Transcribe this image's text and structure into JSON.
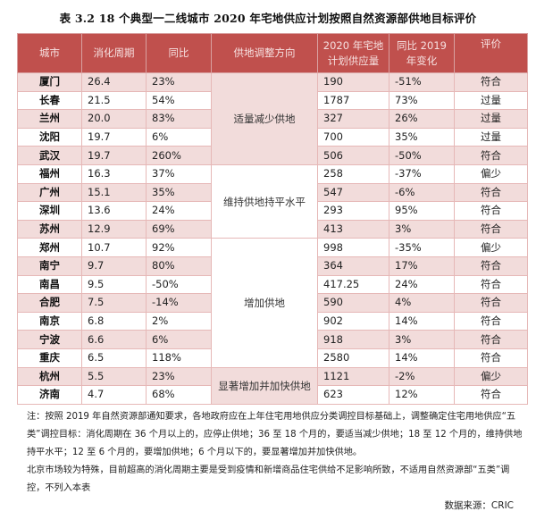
{
  "caption": "表 3.2   18 个典型一二线城市 2020 年宅地供应计划按照自然资源部供地目标评价",
  "table": {
    "headers": {
      "city": "城市",
      "cycle": "消化周期",
      "yoy": "同比",
      "direction": "供地调整方向",
      "supply_line1": "2020 年宅地",
      "supply_line2": "计划供应量",
      "change_line1": "同比 2019",
      "change_line2": "年变化",
      "eval": "评价"
    },
    "rows": [
      {
        "city": "厦门",
        "cycle": "26.4",
        "yoy": "23%",
        "supply": "190",
        "change": "-51%",
        "eval": "符合"
      },
      {
        "city": "长春",
        "cycle": "21.5",
        "yoy": "54%",
        "supply": "1787",
        "change": "73%",
        "eval": "过量"
      },
      {
        "city": "兰州",
        "cycle": "20.0",
        "yoy": "83%",
        "supply": "327",
        "change": "26%",
        "eval": "过量"
      },
      {
        "city": "沈阳",
        "cycle": "19.7",
        "yoy": "6%",
        "supply": "700",
        "change": "35%",
        "eval": "过量"
      },
      {
        "city": "武汉",
        "cycle": "19.7",
        "yoy": "260%",
        "supply": "506",
        "change": "-50%",
        "eval": "符合"
      },
      {
        "city": "福州",
        "cycle": "16.3",
        "yoy": "37%",
        "supply": "258",
        "change": "-37%",
        "eval": "偏少"
      },
      {
        "city": "广州",
        "cycle": "15.1",
        "yoy": "35%",
        "supply": "547",
        "change": "-6%",
        "eval": "符合"
      },
      {
        "city": "深圳",
        "cycle": "13.6",
        "yoy": "24%",
        "supply": "293",
        "change": "95%",
        "eval": "符合"
      },
      {
        "city": "苏州",
        "cycle": "12.9",
        "yoy": "69%",
        "supply": "413",
        "change": "3%",
        "eval": "符合"
      },
      {
        "city": "郑州",
        "cycle": "10.7",
        "yoy": "92%",
        "supply": "998",
        "change": "-35%",
        "eval": "偏少"
      },
      {
        "city": "南宁",
        "cycle": "9.7",
        "yoy": "80%",
        "supply": "364",
        "change": "17%",
        "eval": "符合"
      },
      {
        "city": "南昌",
        "cycle": "9.5",
        "yoy": "-50%",
        "supply": "417.25",
        "change": "24%",
        "eval": "符合"
      },
      {
        "city": "合肥",
        "cycle": "7.5",
        "yoy": "-14%",
        "supply": "590",
        "change": "4%",
        "eval": "符合"
      },
      {
        "city": "南京",
        "cycle": "6.8",
        "yoy": "2%",
        "supply": "902",
        "change": "14%",
        "eval": "符合"
      },
      {
        "city": "宁波",
        "cycle": "6.6",
        "yoy": "6%",
        "supply": "918",
        "change": "3%",
        "eval": "符合"
      },
      {
        "city": "重庆",
        "cycle": "6.5",
        "yoy": "118%",
        "supply": "2580",
        "change": "14%",
        "eval": "符合"
      },
      {
        "city": "杭州",
        "cycle": "5.5",
        "yoy": "23%",
        "supply": "1121",
        "change": "-2%",
        "eval": "偏少"
      },
      {
        "city": "济南",
        "cycle": "4.7",
        "yoy": "68%",
        "supply": "623",
        "change": "12%",
        "eval": "符合"
      }
    ],
    "directions": [
      {
        "label": "适量减少供地",
        "rowspan": 5
      },
      {
        "label": "维持供地持平水平",
        "rowspan": 4
      },
      {
        "label": "增加供地",
        "rowspan": 7
      },
      {
        "label": "显著增加并加快供地",
        "rowspan": 2
      }
    ],
    "colors": {
      "header_bg": "#c0504d",
      "odd_row_bg": "#f2dcdb",
      "even_row_bg": "#ffffff",
      "border": "#e6b8b7"
    }
  },
  "notes": [
    "注：按照 2019 年自然资源部通知要求，各地政府应在上年住宅用地供应分类调控目标基础上，调整确定住宅用地供应“五类”调控目标：消化周期在 36 个月以上的，应停止供地；36 至 18 个月的，要适当减少供地；18 至 12 个月的，维持供地持平水平；12 至 6 个月的，要增加供地；6 个月以下的，要显著增加并加快供地。",
    "北京市场较为特殊，目前超高的消化周期主要是受到疫情和新增商品住宅供给不足影响所致，不适用自然资源部“五类”调控，不列入本表"
  ],
  "source": "数据来源：CRIC"
}
